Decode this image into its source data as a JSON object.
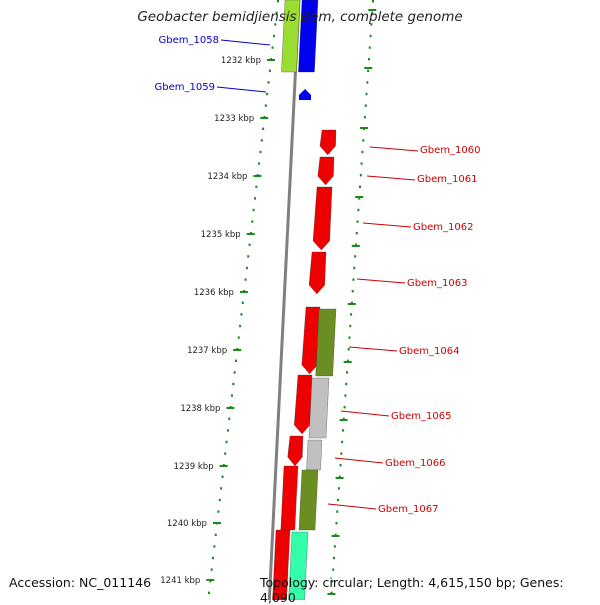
{
  "title": "Geobacter bemidjiensis Bem, complete genome",
  "footer": {
    "accession": "Accession: NC_011146",
    "topology": "Topology: circular; Length: 4,615,150 bp; Genes: 4,090"
  },
  "colors": {
    "backbone": "#808080",
    "tick_dots": "#1a8a1a",
    "label_left": "#0000cc",
    "label_right": "#cc0000",
    "red_gene": "#ee0000",
    "blue_gene": "#0000ee",
    "lime_gene": "#99dd33",
    "olive_gene": "#6b8e23",
    "grey_gene": "#c0c0c0",
    "aqua_gene": "#33ffaa"
  },
  "kbp_ticks": [
    "1232 kbp",
    "1233 kbp",
    "1234 kbp",
    "1235 kbp",
    "1236 kbp",
    "1237 kbp",
    "1238 kbp",
    "1239 kbp",
    "1240 kbp",
    "1241 kbp"
  ],
  "gene_labels": [
    {
      "text": "Gbem_1058",
      "side": "left"
    },
    {
      "text": "Gbem_1059",
      "side": "left"
    },
    {
      "text": "Gbem_1060",
      "side": "right"
    },
    {
      "text": "Gbem_1061",
      "side": "right"
    },
    {
      "text": "Gbem_1062",
      "side": "right"
    },
    {
      "text": "Gbem_1063",
      "side": "right"
    },
    {
      "text": "Gbem_1064",
      "side": "right"
    },
    {
      "text": "Gbem_1065",
      "side": "right"
    },
    {
      "text": "Gbem_1066",
      "side": "right"
    },
    {
      "text": "Gbem_1067",
      "side": "right"
    }
  ]
}
